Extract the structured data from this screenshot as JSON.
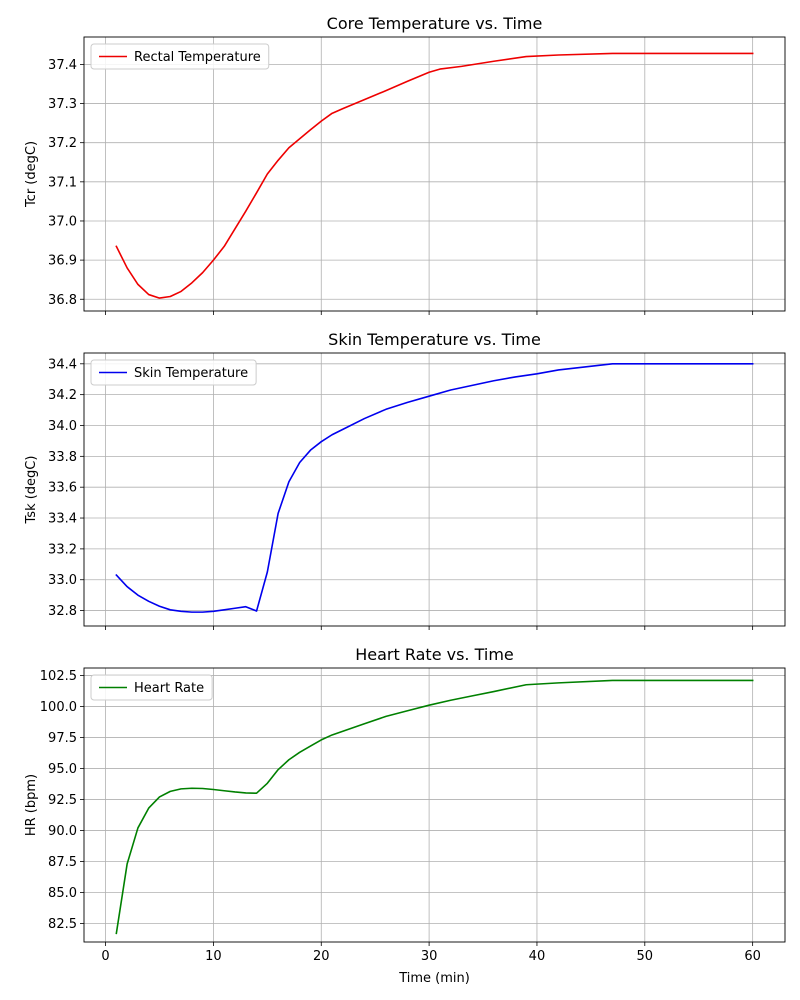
{
  "chart_data": [
    {
      "type": "line",
      "title": "Core Temperature vs. Time",
      "xlabel": "",
      "ylabel": "Tcr (degC)",
      "xlim": [
        -2,
        63
      ],
      "ylim": [
        36.77,
        37.47
      ],
      "xticks": [
        0,
        10,
        20,
        30,
        40,
        50,
        60
      ],
      "show_xtick_labels": false,
      "yticks": [
        36.8,
        36.9,
        37.0,
        37.1,
        37.2,
        37.3,
        37.4
      ],
      "ytick_labels": [
        "36.8",
        "36.9",
        "37.0",
        "37.1",
        "37.2",
        "37.3",
        "37.4"
      ],
      "grid": true,
      "legend": "upper-left",
      "series": [
        {
          "name": "Rectal Temperature",
          "color": "#ee0000",
          "x": [
            1,
            2,
            3,
            4,
            5,
            6,
            7,
            8,
            9,
            10,
            11,
            12,
            13,
            14,
            15,
            16,
            17,
            18,
            19,
            20,
            21,
            22,
            24,
            26,
            28,
            30,
            31,
            33,
            36,
            39,
            42,
            47,
            50,
            55,
            60
          ],
          "y": [
            36.935,
            36.88,
            36.838,
            36.812,
            36.803,
            36.807,
            36.82,
            36.842,
            36.868,
            36.9,
            36.935,
            36.98,
            37.025,
            37.072,
            37.12,
            37.155,
            37.187,
            37.21,
            37.233,
            37.255,
            37.275,
            37.287,
            37.31,
            37.333,
            37.357,
            37.38,
            37.388,
            37.395,
            37.408,
            37.42,
            37.424,
            37.428,
            37.428,
            37.428,
            37.428
          ]
        }
      ]
    },
    {
      "type": "line",
      "title": "Skin Temperature vs. Time",
      "xlabel": "",
      "ylabel": "Tsk (degC)",
      "xlim": [
        -2,
        63
      ],
      "ylim": [
        32.7,
        34.47
      ],
      "xticks": [
        0,
        10,
        20,
        30,
        40,
        50,
        60
      ],
      "show_xtick_labels": false,
      "yticks": [
        32.8,
        33.0,
        33.2,
        33.4,
        33.6,
        33.8,
        34.0,
        34.2,
        34.4
      ],
      "ytick_labels": [
        "32.8",
        "33.0",
        "33.2",
        "33.4",
        "33.6",
        "33.8",
        "34.0",
        "34.2",
        "34.4"
      ],
      "grid": true,
      "legend": "upper-left",
      "series": [
        {
          "name": "Skin Temperature",
          "color": "#0000ee",
          "x": [
            1,
            2,
            3,
            4,
            5,
            6,
            7,
            8,
            9,
            10,
            11,
            12,
            13,
            14,
            15,
            16,
            17,
            18,
            19,
            20,
            21,
            22,
            24,
            26,
            28,
            30,
            32,
            34,
            36,
            38,
            40,
            42,
            47,
            50,
            55,
            60
          ],
          "y": [
            33.03,
            32.955,
            32.9,
            32.86,
            32.828,
            32.805,
            32.795,
            32.79,
            32.79,
            32.795,
            32.805,
            32.815,
            32.825,
            32.797,
            33.05,
            33.43,
            33.635,
            33.76,
            33.84,
            33.895,
            33.94,
            33.975,
            34.045,
            34.105,
            34.15,
            34.19,
            34.23,
            34.26,
            34.29,
            34.315,
            34.335,
            34.36,
            34.4,
            34.4,
            34.4,
            34.4
          ]
        }
      ]
    },
    {
      "type": "line",
      "title": "Heart Rate vs. Time",
      "xlabel": "Time (min)",
      "ylabel": "HR (bpm)",
      "xlim": [
        -2,
        63
      ],
      "ylim": [
        81.0,
        103.1
      ],
      "xticks": [
        0,
        10,
        20,
        30,
        40,
        50,
        60
      ],
      "xtick_labels": [
        "0",
        "10",
        "20",
        "30",
        "40",
        "50",
        "60"
      ],
      "show_xtick_labels": true,
      "yticks": [
        82.5,
        85.0,
        87.5,
        90.0,
        92.5,
        95.0,
        97.5,
        100.0,
        102.5
      ],
      "ytick_labels": [
        "82.5",
        "85.0",
        "87.5",
        "90.0",
        "92.5",
        "95.0",
        "97.5",
        "100.0",
        "102.5"
      ],
      "grid": true,
      "legend": "upper-left",
      "series": [
        {
          "name": "Heart Rate",
          "color": "#008000",
          "x": [
            1,
            2,
            3,
            4,
            5,
            6,
            7,
            8,
            9,
            10,
            11,
            12,
            13,
            14,
            15,
            16,
            17,
            18,
            19,
            20,
            21,
            22,
            24,
            26,
            28,
            30,
            32,
            34,
            36,
            39,
            42,
            47,
            50,
            55,
            60
          ],
          "y": [
            81.7,
            87.3,
            90.2,
            91.8,
            92.7,
            93.15,
            93.35,
            93.4,
            93.38,
            93.3,
            93.2,
            93.1,
            93.02,
            93.0,
            93.8,
            94.9,
            95.7,
            96.3,
            96.8,
            97.3,
            97.7,
            98.0,
            98.6,
            99.2,
            99.65,
            100.1,
            100.5,
            100.85,
            101.2,
            101.75,
            101.9,
            102.1,
            102.1,
            102.1,
            102.1
          ]
        }
      ]
    }
  ]
}
